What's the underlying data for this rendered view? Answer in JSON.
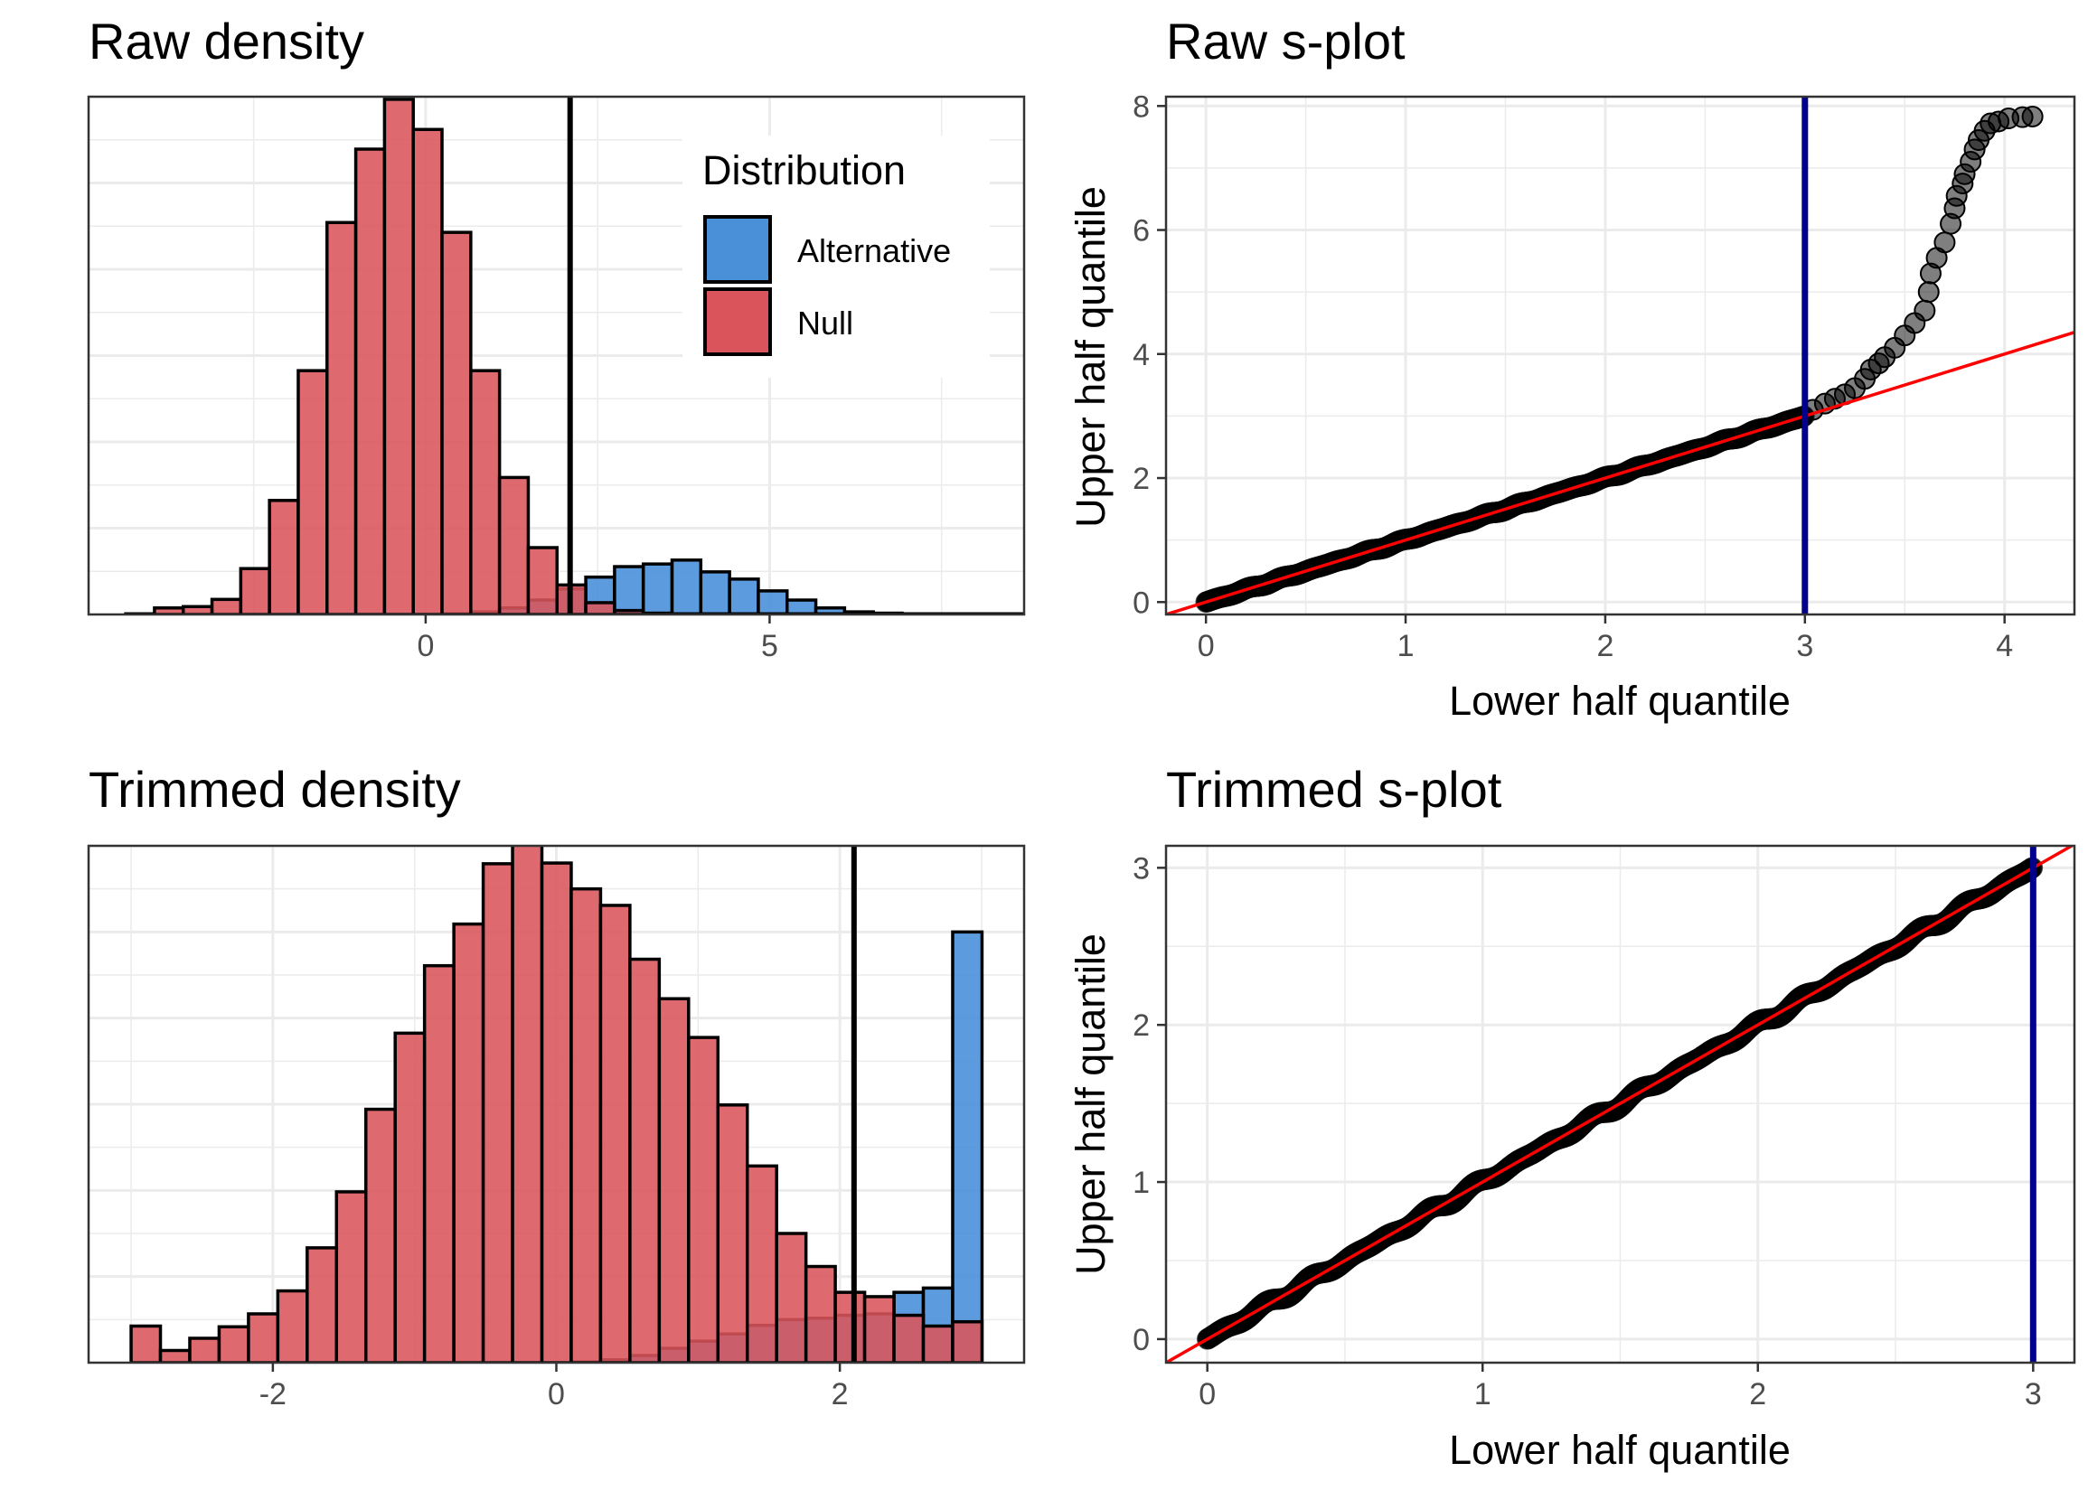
{
  "colors": {
    "alternative": "#4a90d9",
    "null": "#d9555b",
    "panel_border": "#333333",
    "grid": "#ebebeb",
    "threshold_density": "#000000",
    "threshold_splot": "#00008b",
    "reference_line": "#ff0000",
    "points": "#000000"
  },
  "legend": {
    "title": "Distribution",
    "entries": [
      {
        "label": "Alternative",
        "color": "#4a90d9"
      },
      {
        "label": "Null",
        "color": "#d9555b"
      }
    ],
    "placement": "top-right inside first panel"
  },
  "chart_data": [
    {
      "id": "raw_density",
      "type": "bar",
      "title": "Raw density",
      "xlabel": "",
      "ylabel": "",
      "xlim": [
        -4.9,
        8.7
      ],
      "ylim": [
        0,
        790
      ],
      "xticks": [
        0,
        5
      ],
      "yticks_shown": false,
      "grid": true,
      "bin_width": 0.418,
      "bin_start": -4.36,
      "null_counts": [
        1,
        10,
        12,
        23,
        70,
        174,
        372,
        598,
        710,
        786,
        740,
        583,
        372,
        209,
        102,
        45,
        18,
        6,
        2,
        1,
        1,
        1,
        1,
        1,
        1,
        1,
        1,
        1,
        1,
        1,
        1,
        1
      ],
      "alt_counts": [
        0,
        0,
        0,
        0,
        0,
        0,
        0,
        0,
        0,
        0,
        0,
        1,
        4,
        10,
        22,
        39,
        57,
        73,
        77,
        83,
        65,
        54,
        36,
        22,
        10,
        4,
        2,
        1,
        1,
        1,
        1,
        1
      ],
      "vline": 2.1
    },
    {
      "id": "raw_splot",
      "type": "scatter",
      "title": "Raw s-plot",
      "xlabel": "Lower half quantile",
      "ylabel": "Upper half quantile",
      "xlim": [
        -0.2,
        4.35
      ],
      "ylim": [
        -0.2,
        8.15
      ],
      "xticks": [
        0,
        1,
        2,
        3,
        4
      ],
      "yticks": [
        0,
        2,
        4,
        6,
        8
      ],
      "grid": true,
      "vline": 3.0,
      "ref_line": {
        "intercept": 0,
        "slope": 1
      },
      "dense_points": {
        "from": 0,
        "to": 3.0,
        "step": 0.004,
        "slope": 1.0,
        "wiggle": 0.02
      },
      "tail_points": [
        [
          3.04,
          3.1
        ],
        [
          3.1,
          3.2
        ],
        [
          3.15,
          3.28
        ],
        [
          3.2,
          3.35
        ],
        [
          3.25,
          3.45
        ],
        [
          3.3,
          3.6
        ],
        [
          3.33,
          3.75
        ],
        [
          3.37,
          3.85
        ],
        [
          3.4,
          3.95
        ],
        [
          3.45,
          4.1
        ],
        [
          3.5,
          4.3
        ],
        [
          3.55,
          4.5
        ],
        [
          3.6,
          4.7
        ],
        [
          3.62,
          5.0
        ],
        [
          3.63,
          5.3
        ],
        [
          3.66,
          5.55
        ],
        [
          3.7,
          5.8
        ],
        [
          3.73,
          6.1
        ],
        [
          3.75,
          6.35
        ],
        [
          3.76,
          6.55
        ],
        [
          3.79,
          6.75
        ],
        [
          3.8,
          6.9
        ],
        [
          3.83,
          7.1
        ],
        [
          3.85,
          7.3
        ],
        [
          3.87,
          7.45
        ],
        [
          3.9,
          7.6
        ],
        [
          3.93,
          7.72
        ],
        [
          3.97,
          7.75
        ],
        [
          4.02,
          7.8
        ],
        [
          4.09,
          7.82
        ],
        [
          4.14,
          7.83
        ]
      ]
    },
    {
      "id": "trimmed_density",
      "type": "bar",
      "title": "Trimmed density",
      "xlabel": "",
      "ylabel": "",
      "xlim": [
        -3.3,
        3.3
      ],
      "ylim": [
        0,
        720
      ],
      "xticks": [
        -2,
        0,
        2
      ],
      "yticks_shown": false,
      "grid": true,
      "bin_width": 0.207,
      "bin_start": -3.0,
      "null_counts": [
        51,
        17,
        34,
        50,
        68,
        100,
        160,
        238,
        353,
        459,
        553,
        611,
        695,
        726,
        696,
        660,
        637,
        562,
        507,
        453,
        359,
        274,
        180,
        134,
        98,
        92,
        66,
        51,
        57
      ],
      "alt_counts": [
        0,
        0,
        0,
        0,
        0,
        0,
        0,
        0,
        0,
        0,
        0,
        0,
        0,
        0,
        0,
        1,
        4,
        10,
        20,
        30,
        40,
        52,
        60,
        62,
        66,
        68,
        98,
        104,
        600
      ],
      "vline": 2.1
    },
    {
      "id": "trimmed_splot",
      "type": "scatter",
      "title": "Trimmed s-plot",
      "xlabel": "Lower half quantile",
      "ylabel": "Upper half quantile",
      "xlim": [
        -0.15,
        3.15
      ],
      "ylim": [
        -0.15,
        3.14
      ],
      "xticks": [
        0,
        1,
        2,
        3
      ],
      "yticks": [
        0,
        1,
        2,
        3
      ],
      "grid": true,
      "vline": 3.0,
      "ref_line": {
        "intercept": 0,
        "slope": 1
      },
      "dense_points": {
        "from": 0,
        "to": 3.0,
        "step": 0.003,
        "slope": 1.0,
        "wiggle": 0.025
      }
    }
  ]
}
